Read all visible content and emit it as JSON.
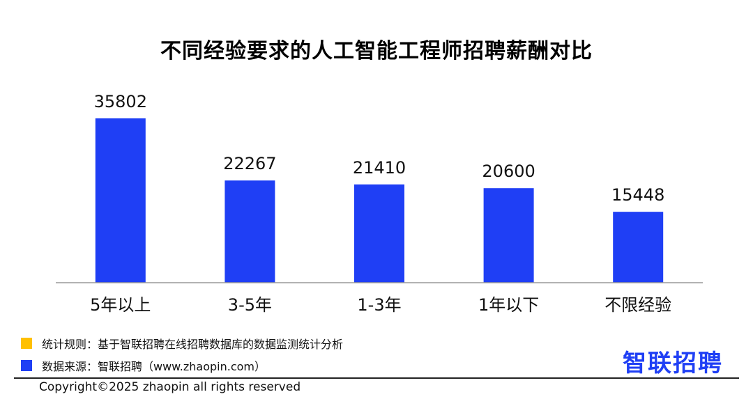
{
  "header": {
    "title": "不同经验要求的人工智能工程师招聘薪酬对比"
  },
  "chart_data": {
    "type": "bar",
    "title": "不同经验要求的人工智能工程师招聘薪酬对比",
    "categories": [
      "5年以上",
      "3-5年",
      "1-3年",
      "1年以下",
      "不限经验"
    ],
    "values": [
      35802,
      22267,
      21410,
      20600,
      15448
    ],
    "xlabel": "",
    "ylabel": "",
    "ylim": [
      0,
      35802
    ],
    "grid": false,
    "bar_color": "#1f3ff5",
    "data_labels": true
  },
  "notes": {
    "rule": {
      "label": "统计规则：基于智联招聘在线招聘数据库的数据监测统计分析",
      "color": "#ffc000"
    },
    "source": {
      "label": "数据来源：智联招聘（www.zhaopin.com）",
      "color": "#1f3ff5"
    }
  },
  "logo": {
    "text": "智联招聘",
    "color": "#1f3ff5"
  },
  "footer": {
    "copyright": "Copyright©2025 zhaopin all rights reserved"
  }
}
